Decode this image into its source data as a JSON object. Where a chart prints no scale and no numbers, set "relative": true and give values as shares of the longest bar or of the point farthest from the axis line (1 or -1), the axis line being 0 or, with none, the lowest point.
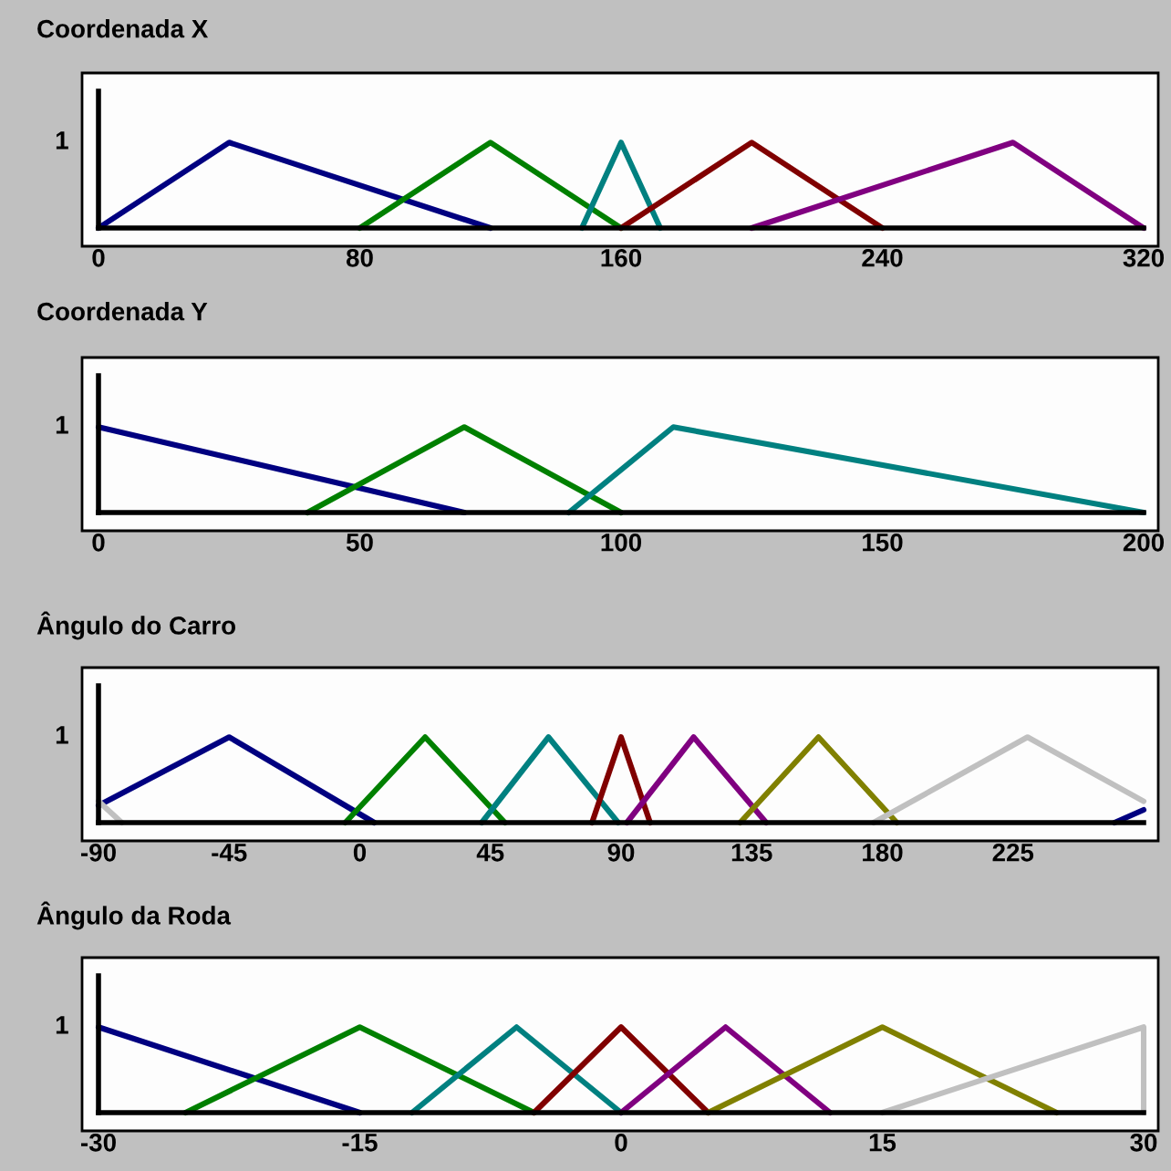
{
  "chart_data": [
    {
      "type": "line",
      "title": "Coordenada X",
      "relative": true,
      "xlim": [
        0,
        320
      ],
      "xticks": [
        0,
        80,
        160,
        240,
        320
      ],
      "annotations": [
        "1"
      ],
      "series": [
        {
          "color": "#000080",
          "x": [
            0,
            40,
            120
          ],
          "values": [
            0,
            1,
            0
          ]
        },
        {
          "color": "#008000",
          "x": [
            80,
            120,
            160
          ],
          "values": [
            0,
            1,
            0
          ]
        },
        {
          "color": "#008080",
          "x": [
            148,
            160,
            172
          ],
          "values": [
            0,
            1,
            0
          ]
        },
        {
          "color": "#800000",
          "x": [
            160,
            200,
            240
          ],
          "values": [
            0,
            1,
            0
          ]
        },
        {
          "color": "#800080",
          "x": [
            200,
            280,
            320
          ],
          "values": [
            0,
            1,
            0
          ]
        }
      ]
    },
    {
      "type": "line",
      "title": "Coordenada Y",
      "relative": true,
      "xlim": [
        0,
        200
      ],
      "xticks": [
        0,
        50,
        100,
        150,
        200
      ],
      "annotations": [
        "1"
      ],
      "series": [
        {
          "color": "#000080",
          "x": [
            0,
            70
          ],
          "values": [
            1,
            0
          ]
        },
        {
          "color": "#008000",
          "x": [
            40,
            70,
            100
          ],
          "values": [
            0,
            1,
            0
          ]
        },
        {
          "color": "#008080",
          "x": [
            90,
            110,
            200
          ],
          "values": [
            0,
            1,
            0
          ]
        }
      ]
    },
    {
      "type": "line",
      "title": "Ângulo do Carro",
      "relative": true,
      "xlim": [
        -90,
        270
      ],
      "xticks": [
        -90,
        -45,
        0,
        45,
        90,
        135,
        180,
        225
      ],
      "annotations": [
        "1"
      ],
      "series": [
        {
          "color": "#000080",
          "x": [
            -90,
            -45,
            5,
            135,
            260,
            270
          ],
          "values": [
            0.2,
            1,
            0,
            null,
            0,
            0.15
          ]
        },
        {
          "color": "#008000",
          "x": [
            -5,
            22.5,
            50
          ],
          "values": [
            0,
            1,
            0
          ]
        },
        {
          "color": "#008080",
          "x": [
            42,
            65,
            89
          ],
          "values": [
            0,
            1,
            0
          ]
        },
        {
          "color": "#800000",
          "x": [
            80,
            90,
            100
          ],
          "values": [
            0,
            1,
            0
          ]
        },
        {
          "color": "#800080",
          "x": [
            92,
            115,
            140
          ],
          "values": [
            0,
            1,
            0
          ]
        },
        {
          "color": "#808000",
          "x": [
            131,
            158,
            185
          ],
          "values": [
            0,
            1,
            0
          ]
        },
        {
          "color": "#c0c0c0",
          "x": [
            -90,
            -82,
            45,
            177,
            230,
            270
          ],
          "values": [
            0.25,
            0,
            null,
            0,
            1,
            0.25
          ]
        }
      ]
    },
    {
      "type": "line",
      "title": "Ângulo da Roda",
      "relative": true,
      "xlim": [
        -30,
        30
      ],
      "xticks": [
        -30,
        -15,
        0,
        15,
        30
      ],
      "annotations": [
        "1"
      ],
      "series": [
        {
          "color": "#000080",
          "x": [
            -30,
            -15
          ],
          "values": [
            1,
            0
          ]
        },
        {
          "color": "#008000",
          "x": [
            -25,
            -15,
            -5
          ],
          "values": [
            0,
            1,
            0
          ]
        },
        {
          "color": "#008080",
          "x": [
            -12,
            -6,
            0
          ],
          "values": [
            0,
            1,
            0
          ]
        },
        {
          "color": "#800000",
          "x": [
            -5,
            0,
            5
          ],
          "values": [
            0,
            1,
            0
          ]
        },
        {
          "color": "#800080",
          "x": [
            0,
            6,
            12
          ],
          "values": [
            0,
            1,
            0
          ]
        },
        {
          "color": "#808000",
          "x": [
            5,
            15,
            25
          ],
          "values": [
            0,
            1,
            0
          ]
        },
        {
          "color": "#c0c0c0",
          "x": [
            15,
            30,
            30
          ],
          "values": [
            0,
            1,
            0
          ]
        }
      ]
    }
  ]
}
